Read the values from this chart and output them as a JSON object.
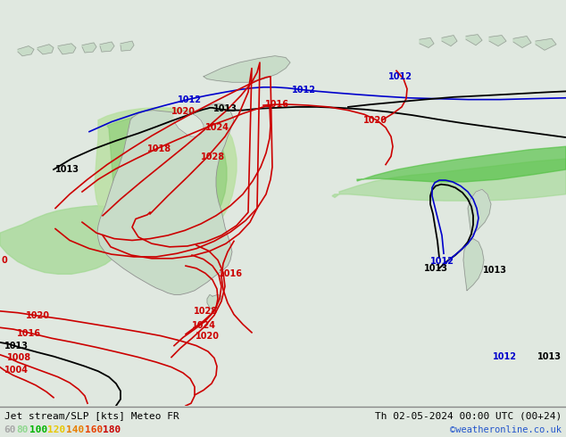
{
  "title_left": "Jet stream/SLP [kts] Meteo FR",
  "title_right": "Th 02-05-2024 00:00 UTC (00+24)",
  "credit": "©weatheronline.co.uk",
  "legend_values": [
    "60",
    "80",
    "100",
    "120",
    "140",
    "160",
    "180"
  ],
  "legend_colors": [
    "#a8a8a8",
    "#90d890",
    "#00b400",
    "#e8c800",
    "#e88000",
    "#e84000",
    "#c80000"
  ],
  "bg_color": "#e0e8e0",
  "land_color": "#c8dcc8",
  "land_border": "#909090",
  "ocean_color": "#dce8dc",
  "slp_red": "#cc0000",
  "slp_black": "#000000",
  "slp_blue": "#0000cc",
  "figsize": [
    6.34,
    4.9
  ],
  "dpi": 100
}
